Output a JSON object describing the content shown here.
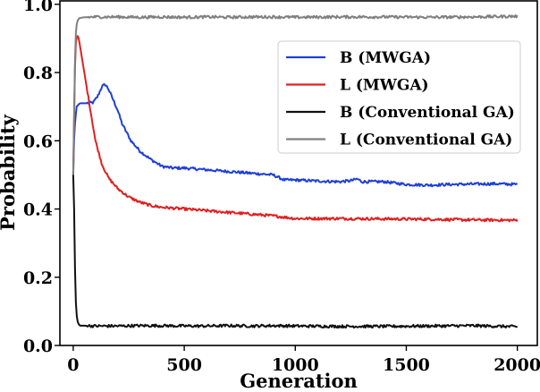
{
  "chart_data": {
    "type": "line",
    "title": "",
    "xlabel": "Generation",
    "ylabel": "Probability",
    "xlim": [
      -60,
      2090
    ],
    "ylim": [
      0.0,
      1.01
    ],
    "x_ticks": [
      0,
      500,
      1000,
      1500,
      2000
    ],
    "x_tick_labels": [
      "0",
      "500",
      "1000",
      "1500",
      "2000"
    ],
    "y_ticks": [
      0.0,
      0.2,
      0.4,
      0.6,
      0.8,
      1.0
    ],
    "y_tick_labels": [
      "0.0",
      "0.2",
      "0.4",
      "0.6",
      "0.8",
      "1.0"
    ],
    "grid": false,
    "legend_position": "top-right",
    "series": [
      {
        "name": "B (MWGA)",
        "color": "#1f3fd9",
        "x": [
          0,
          5,
          15,
          30,
          60,
          90,
          110,
          130,
          145,
          160,
          180,
          200,
          220,
          240,
          260,
          300,
          350,
          400,
          450,
          500,
          600,
          700,
          800,
          900,
          950,
          1000,
          1100,
          1200,
          1250,
          1280,
          1300,
          1400,
          1500,
          1600,
          1700,
          1800,
          1900,
          2000
        ],
        "y": [
          0.5,
          0.63,
          0.7,
          0.71,
          0.71,
          0.712,
          0.73,
          0.76,
          0.765,
          0.75,
          0.72,
          0.69,
          0.65,
          0.625,
          0.6,
          0.57,
          0.545,
          0.525,
          0.52,
          0.52,
          0.515,
          0.51,
          0.505,
          0.5,
          0.485,
          0.485,
          0.482,
          0.48,
          0.483,
          0.488,
          0.48,
          0.48,
          0.472,
          0.47,
          0.472,
          0.473,
          0.474,
          0.472
        ]
      },
      {
        "name": "L (MWGA)",
        "color": "#e02020",
        "x": [
          0,
          5,
          10,
          18,
          25,
          40,
          60,
          80,
          100,
          130,
          160,
          200,
          250,
          300,
          350,
          400,
          500,
          600,
          700,
          800,
          900,
          1000,
          1200,
          1400,
          1600,
          1800,
          2000
        ],
        "y": [
          0.5,
          0.72,
          0.88,
          0.91,
          0.9,
          0.84,
          0.76,
          0.68,
          0.6,
          0.53,
          0.49,
          0.46,
          0.435,
          0.42,
          0.41,
          0.405,
          0.4,
          0.395,
          0.39,
          0.385,
          0.38,
          0.372,
          0.372,
          0.371,
          0.37,
          0.368,
          0.367
        ]
      },
      {
        "name": "B (Conventional GA)",
        "color": "#111111",
        "x": [
          0,
          3,
          6,
          10,
          15,
          20,
          25,
          30,
          50,
          100,
          200,
          300,
          400,
          500,
          600,
          700,
          800,
          900,
          1000,
          1200,
          1400,
          1600,
          1800,
          2000
        ],
        "y": [
          0.5,
          0.45,
          0.3,
          0.15,
          0.09,
          0.07,
          0.062,
          0.058,
          0.058,
          0.057,
          0.057,
          0.058,
          0.058,
          0.057,
          0.057,
          0.058,
          0.057,
          0.058,
          0.057,
          0.056,
          0.056,
          0.057,
          0.058,
          0.055
        ]
      },
      {
        "name": "L (Conventional GA)",
        "color": "#808080",
        "x": [
          0,
          3,
          6,
          10,
          15,
          20,
          25,
          30,
          50,
          100,
          200,
          300,
          400,
          500,
          600,
          700,
          800,
          900,
          1000,
          1200,
          1400,
          1600,
          1800,
          2000
        ],
        "y": [
          0.5,
          0.6,
          0.78,
          0.9,
          0.94,
          0.952,
          0.958,
          0.96,
          0.962,
          0.963,
          0.963,
          0.962,
          0.963,
          0.962,
          0.963,
          0.962,
          0.963,
          0.963,
          0.962,
          0.963,
          0.963,
          0.962,
          0.963,
          0.965
        ]
      }
    ]
  }
}
